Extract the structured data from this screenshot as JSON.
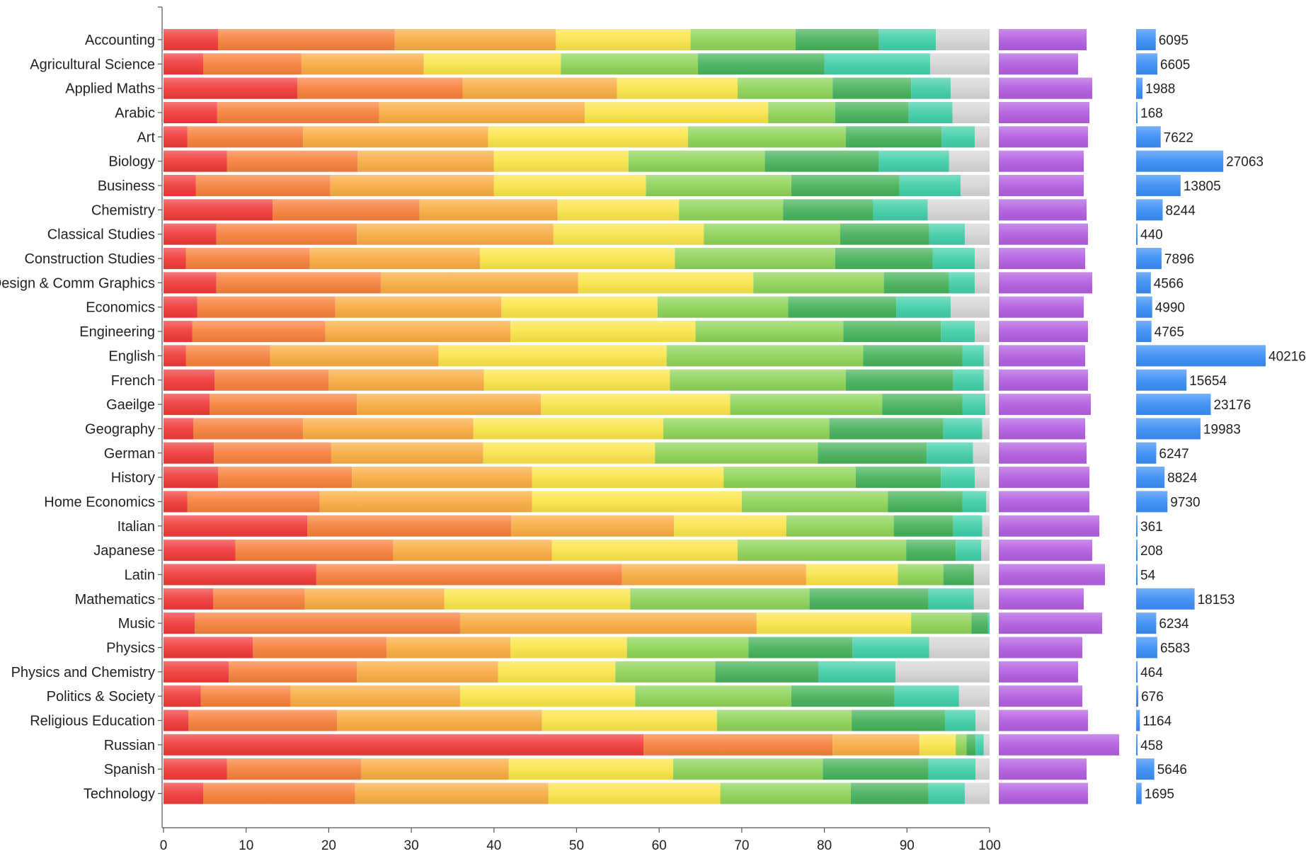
{
  "chart_data": {
    "type": "bar",
    "stacked": true,
    "orientation": "horizontal",
    "categories": [
      "Accounting",
      "Agricultural Science",
      "Applied Maths",
      "Arabic",
      "Art",
      "Biology",
      "Business",
      "Chemistry",
      "Classical Studies",
      "Construction Studies",
      "Design & Comm Graphics",
      "Economics",
      "Engineering",
      "English",
      "French",
      "Gaeilge",
      "Geography",
      "German",
      "History",
      "Home Economics",
      "Italian",
      "Japanese",
      "Latin",
      "Mathematics",
      "Music",
      "Physics",
      "Physics and Chemistry",
      "Politics & Society",
      "Religious Education",
      "Russian",
      "Spanish",
      "Technology"
    ],
    "cumulative_boundaries": [
      [
        6.6,
        28.0,
        47.5,
        63.8,
        76.5,
        86.6,
        93.5,
        100
      ],
      [
        4.8,
        16.7,
        31.5,
        48.1,
        64.7,
        80.0,
        92.8,
        100
      ],
      [
        16.2,
        36.2,
        54.9,
        69.5,
        81.0,
        90.5,
        95.3,
        100
      ],
      [
        6.5,
        26.1,
        51.0,
        73.2,
        81.3,
        90.2,
        95.5,
        100
      ],
      [
        2.9,
        16.9,
        39.3,
        63.5,
        82.6,
        94.2,
        98.2,
        100
      ],
      [
        7.7,
        23.5,
        40.0,
        56.3,
        72.8,
        86.6,
        95.1,
        100
      ],
      [
        3.9,
        20.2,
        40.0,
        58.4,
        76.0,
        89.1,
        96.5,
        100
      ],
      [
        13.2,
        31.0,
        47.7,
        62.4,
        75.0,
        85.9,
        92.5,
        100
      ],
      [
        6.4,
        23.4,
        47.2,
        65.4,
        81.9,
        92.7,
        97.0,
        100
      ],
      [
        2.7,
        17.7,
        38.3,
        61.9,
        81.3,
        93.1,
        98.2,
        100
      ],
      [
        6.4,
        26.3,
        50.2,
        71.4,
        87.2,
        95.1,
        98.2,
        100
      ],
      [
        4.1,
        20.8,
        40.9,
        59.8,
        75.6,
        88.7,
        95.3,
        100
      ],
      [
        3.5,
        19.6,
        42.0,
        64.4,
        82.3,
        94.1,
        98.2,
        100
      ],
      [
        2.7,
        12.9,
        33.3,
        60.9,
        84.7,
        96.7,
        99.3,
        100
      ],
      [
        6.2,
        20.0,
        38.8,
        61.3,
        82.6,
        95.6,
        99.3,
        100
      ],
      [
        5.6,
        23.4,
        45.7,
        68.6,
        87.0,
        96.7,
        99.5,
        100
      ],
      [
        3.6,
        16.9,
        37.5,
        60.5,
        80.6,
        94.4,
        99.1,
        100
      ],
      [
        6.1,
        20.3,
        38.7,
        59.5,
        79.2,
        92.4,
        98.0,
        100
      ],
      [
        6.6,
        22.8,
        44.6,
        67.8,
        83.8,
        94.1,
        98.2,
        100
      ],
      [
        2.9,
        18.9,
        44.6,
        70.0,
        87.7,
        96.7,
        99.6,
        100
      ],
      [
        17.4,
        42.1,
        61.8,
        75.4,
        88.4,
        95.6,
        99.1,
        100
      ],
      [
        8.7,
        27.8,
        47.0,
        69.5,
        89.9,
        95.9,
        99.0,
        100
      ],
      [
        18.5,
        55.5,
        77.8,
        88.9,
        94.4,
        98.1,
        98.1,
        100
      ],
      [
        6.0,
        17.1,
        34.0,
        56.5,
        78.2,
        92.6,
        98.1,
        100
      ],
      [
        3.8,
        35.9,
        71.8,
        90.5,
        97.8,
        99.8,
        100,
        100
      ],
      [
        10.8,
        27.0,
        42.0,
        56.1,
        70.8,
        83.4,
        92.7,
        100
      ],
      [
        7.9,
        23.4,
        40.5,
        54.7,
        66.8,
        79.3,
        88.6,
        100
      ],
      [
        4.5,
        15.4,
        35.9,
        57.1,
        76.0,
        88.5,
        96.3,
        100
      ],
      [
        3.0,
        21.0,
        45.8,
        67.0,
        83.3,
        94.6,
        98.3,
        100
      ],
      [
        58.1,
        81.0,
        91.5,
        95.9,
        97.2,
        98.3,
        99.3,
        100
      ],
      [
        7.7,
        23.9,
        41.8,
        61.7,
        79.8,
        92.6,
        98.3,
        100
      ],
      [
        4.8,
        23.2,
        46.6,
        67.4,
        83.2,
        92.6,
        97.0,
        100
      ]
    ],
    "segment_colors": [
      "#f03a3a",
      "#f7813c",
      "#f9ad43",
      "#fbe54a",
      "#8fd459",
      "#47b35c",
      "#42cfa9",
      "#d6d6d6"
    ],
    "side_values": [
      0.62,
      0.56,
      0.66,
      0.64,
      0.63,
      0.6,
      0.6,
      0.62,
      0.63,
      0.61,
      0.66,
      0.6,
      0.63,
      0.61,
      0.63,
      0.65,
      0.61,
      0.62,
      0.64,
      0.64,
      0.71,
      0.66,
      0.75,
      0.6,
      0.73,
      0.59,
      0.56,
      0.59,
      0.63,
      0.85,
      0.62,
      0.63
    ],
    "side_color": "#b25ee0",
    "counts": [
      6095,
      6605,
      1988,
      168,
      7622,
      27063,
      13805,
      8244,
      440,
      7896,
      4566,
      4990,
      4765,
      40216,
      15654,
      23176,
      19983,
      6247,
      8824,
      9730,
      361,
      208,
      54,
      18153,
      6234,
      6583,
      464,
      676,
      1164,
      458,
      5646,
      1695
    ],
    "count_max": 40216,
    "count_color": "#3a8ef5",
    "xlim": [
      0,
      100
    ],
    "xticks": [
      "0",
      "10",
      "20",
      "30",
      "40",
      "50",
      "60",
      "70",
      "80",
      "90",
      "100"
    ],
    "title": "",
    "xlabel": "",
    "ylabel": ""
  }
}
